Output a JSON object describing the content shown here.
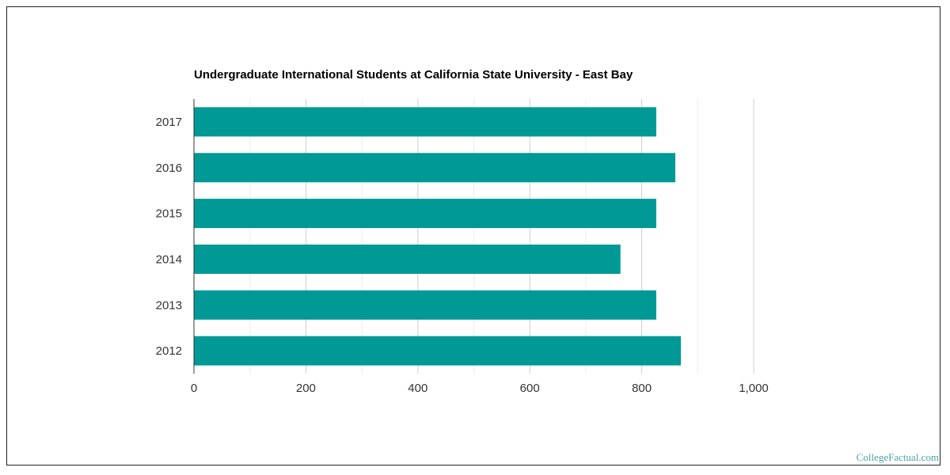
{
  "chart_data": {
    "type": "bar",
    "orientation": "horizontal",
    "title": "Undergraduate International Students at California State University - East Bay",
    "categories": [
      "2017",
      "2016",
      "2015",
      "2014",
      "2013",
      "2012"
    ],
    "values": [
      826,
      860,
      826,
      762,
      826,
      870
    ],
    "xlim": [
      0,
      1000
    ],
    "x_ticks": [
      0,
      200,
      400,
      600,
      800,
      1000
    ],
    "x_tick_labels": [
      "0",
      "200",
      "400",
      "600",
      "800",
      "1,000"
    ],
    "xlabel": "",
    "ylabel": "",
    "grid": true,
    "bar_color": "#009995",
    "legend": "none"
  },
  "watermark": "CollegeFactual.com"
}
